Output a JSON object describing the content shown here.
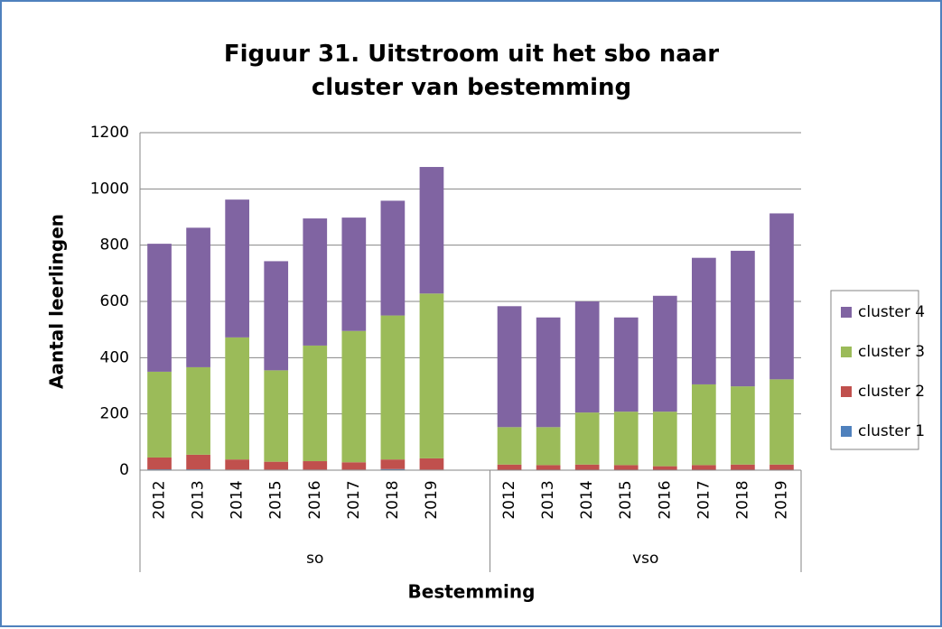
{
  "chart_data": {
    "type": "bar",
    "stacked": true,
    "title": "Figuur 31. Uitstroom uit het sbo naar cluster van bestemming",
    "y_label": "Aantal leerlingen",
    "x_label": "Bestemming",
    "groups": [
      {
        "name": "so",
        "categories": [
          "2012",
          "2013",
          "2014",
          "2015",
          "2016",
          "2017",
          "2018",
          "2019"
        ]
      },
      {
        "name": "vso",
        "categories": [
          "2012",
          "2013",
          "2014",
          "2015",
          "2016",
          "2017",
          "2018",
          "2019"
        ]
      }
    ],
    "series": [
      {
        "name": "cluster 1",
        "color": "#4f81bd",
        "values": [
          3,
          3,
          2,
          2,
          2,
          2,
          4,
          2,
          1,
          1,
          1,
          1,
          1,
          1,
          1,
          1
        ]
      },
      {
        "name": "cluster 2",
        "color": "#c0504d",
        "values": [
          42,
          52,
          36,
          28,
          30,
          26,
          34,
          40,
          19,
          17,
          19,
          17,
          13,
          17,
          19,
          19
        ]
      },
      {
        "name": "cluster 3",
        "color": "#9bbb59",
        "values": [
          305,
          311,
          434,
          325,
          411,
          467,
          512,
          586,
          133,
          135,
          185,
          190,
          194,
          287,
          278,
          303
        ]
      },
      {
        "name": "cluster 4",
        "color": "#8064a2",
        "values": [
          455,
          496,
          490,
          388,
          452,
          403,
          408,
          450,
          430,
          390,
          395,
          335,
          412,
          450,
          482,
          590
        ]
      }
    ],
    "ylim": [
      0,
      1200
    ],
    "yticks": [
      0,
      200,
      400,
      600,
      800,
      1000,
      1200
    ],
    "grid": true,
    "legend": "right"
  }
}
